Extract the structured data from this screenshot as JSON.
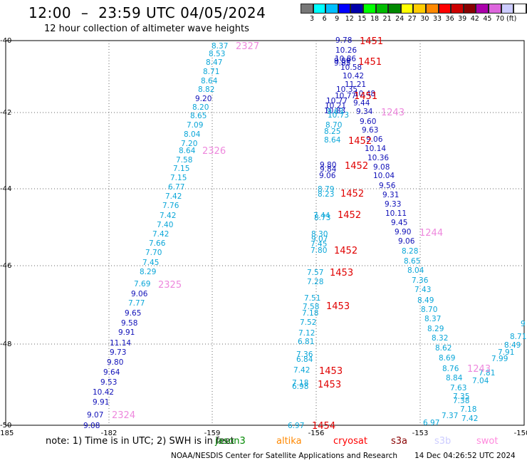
{
  "header": {
    "title": "12:00  –  23:59 UTC 04/05/2024",
    "subtitle": "12 hour collection of altimeter wave heights"
  },
  "legend": {
    "colors": [
      "#777777",
      "#00ffff",
      "#00bfff",
      "#0000ff",
      "#0000aa",
      "#00ff00",
      "#00bb00",
      "#008800",
      "#ffff00",
      "#ffcc00",
      "#ff8800",
      "#ff0000",
      "#cc0000",
      "#880000",
      "#aa00aa",
      "#dd66dd",
      "#ccccff",
      "#ffffff",
      "#000000"
    ],
    "labels": [
      "3",
      "6",
      "9",
      "12",
      "15",
      "18",
      "21",
      "24",
      "27",
      "30",
      "33",
      "36",
      "39",
      "42",
      "45",
      "70"
    ],
    "unit": "(ft)"
  },
  "axes": {
    "lon_ticks": [
      "-185",
      "-182",
      "-159",
      "-156",
      "-153",
      "-150"
    ],
    "lat_ticks": [
      "-40",
      "-42",
      "-44",
      "-46",
      "-48",
      "-50"
    ]
  },
  "track_labels": {
    "2327": "2327",
    "2326": "2326",
    "2325": "2325",
    "2324": "2324",
    "1451a": "1451",
    "1451b": "1451",
    "1451c": "1451",
    "1452a": "1452",
    "1452b": "1452",
    "1452c": "1452",
    "1452d": "1452",
    "1452e": "1452",
    "1453a": "1453",
    "1453b": "1453",
    "1453c": "1453",
    "1453d": "1453",
    "1454": "1454",
    "1243a": "1243",
    "1243b": "1243",
    "1244": "1244"
  },
  "points": {
    "p0": "8.37",
    "p1": "8.53",
    "p2": "8.47",
    "p3": "8.71",
    "p4": "8.64",
    "p5": "8.82",
    "p6": "9.20",
    "p7": "8.20",
    "p8": "8.65",
    "p9": "7.09",
    "p10": "8.04",
    "p11": "7.20",
    "p12": "8.64",
    "p13": "7.58",
    "p14": "7.15",
    "p15": "7.15",
    "p16": "6.77",
    "p17": "7.42",
    "p18": "7.76",
    "p19": "7.42",
    "p20": "7.40",
    "p21": "7.42",
    "p22": "7.66",
    "p23": "7.70",
    "p24": "7.45",
    "p25": "8.29",
    "p26": "7.69",
    "p27": "9.06",
    "p28": "7.77",
    "p29": "9.65",
    "p30": "9.58",
    "p31": "9.91",
    "p32": "11.14",
    "p33": "9.73",
    "p34": "9.80",
    "p35": "9.64",
    "p36": "9.53",
    "p37": "10.42",
    "p38": "9.91",
    "p39": "9.07",
    "p40": "9.08",
    "q0": "9.78",
    "q1": "10.26",
    "q2": "10.86",
    "q3": "9.89",
    "q4": "10.58",
    "q5": "10.42",
    "q6": "11.21",
    "q7": "10.35",
    "q8": "10.77",
    "q9": "10.48",
    "q10": "10.77",
    "q11": "9.44",
    "q12": "10.21",
    "q13": "10.83",
    "q14": "9.34",
    "q15": "9.60",
    "q16": "9.63",
    "q17": "9.06",
    "q18": "10.14",
    "q19": "10.36",
    "q20": "9.08",
    "q21": "10.04",
    "q22": "9.56",
    "q23": "9.31",
    "q24": "9.33",
    "q25": "10.11",
    "q26": "9.45",
    "q27": "9.90",
    "q28": "9.06",
    "q29": "8.28",
    "q30": "8.65",
    "q31": "8.04",
    "q32": "7.36",
    "q33": "7.43",
    "q34": "8.49",
    "q35": "8.70",
    "q36": "8.37",
    "q37": "8.29",
    "q38": "8.32",
    "q39": "8.62",
    "q40": "8.69",
    "q41": "8.76",
    "q42": "8.84",
    "q43": "7.63",
    "q44": "7.35",
    "q45": "7.38",
    "q46": "7.37",
    "q47": "7.18",
    "q48": "7.42",
    "q49": "6.97",
    "q50": "7.04",
    "q51": "7.81",
    "q52": "7.99",
    "q53": "7.91",
    "q54": "8.49",
    "q55": "8.71",
    "q56": "9",
    "r0": "9.85",
    "r1": "10.73",
    "r2": "9.63",
    "r3": "8.70",
    "r4": "8.25",
    "r5": "8.64",
    "r6": "9.80",
    "r7": "9.84",
    "r8": "9.06",
    "r9": "8.79",
    "r10": "8.23",
    "r11": "7.44",
    "r12": "8.73",
    "r13": "8.30",
    "r14": "9.07",
    "r15": "7.45",
    "r16": "7.80",
    "r17": "7.57",
    "r18": "7.28",
    "r19": "7.51",
    "r20": "7.58",
    "r21": "7.18",
    "r22": "7.52",
    "r23": "7.12",
    "r24": "6.81",
    "r25": "7.36",
    "r26": "6.84",
    "r27": "7.42",
    "r28": "7.18",
    "r29": "6.98",
    "r30": "6.97"
  },
  "note": {
    "text": "note:  1) Time is in UTC; 2) SWH is in feet"
  },
  "missions": [
    {
      "label": "jason3",
      "color": "#008800"
    },
    {
      "label": "altika",
      "color": "#ff8800"
    },
    {
      "label": "cryosat",
      "color": "#ff0000"
    },
    {
      "label": "s3a",
      "color": "#880000"
    },
    {
      "label": "s3b",
      "color": "#ccccff"
    },
    {
      "label": "swot",
      "color": "#ff88dd"
    }
  ],
  "footer": {
    "credit": "NOAA/NESDIS Center for Satellite Applications and Research",
    "stamp": "14 Dec 04:26:52 UTC 2024"
  }
}
